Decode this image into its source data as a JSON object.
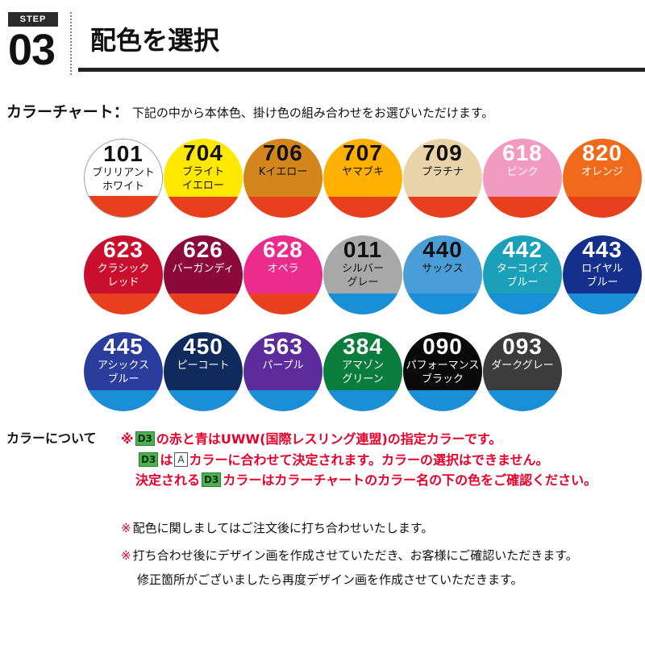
{
  "header": {
    "step_label": "STEP",
    "step_number": "03",
    "title": "配色を選択"
  },
  "chart_intro": {
    "label": "カラーチャート：",
    "description": "下記の中から本体色、掛け色の組み合わせをお選びいただけます。"
  },
  "swatches": [
    {
      "code": "101",
      "name": "ブリリアント\nホワイト",
      "top_color": "#ffffff",
      "bottom_color": "#e8401c",
      "text_color": "#111111"
    },
    {
      "code": "704",
      "name": "ブライト\nイエロー",
      "top_color": "#ffe800",
      "bottom_color": "#e8401c",
      "text_color": "#111111"
    },
    {
      "code": "706",
      "name": "Kイエロー",
      "top_color": "#d4861c",
      "bottom_color": "#e8401c",
      "text_color": "#111111"
    },
    {
      "code": "707",
      "name": "ヤマブキ",
      "top_color": "#ffb000",
      "bottom_color": "#e8401c",
      "text_color": "#111111"
    },
    {
      "code": "709",
      "name": "プラチナ",
      "top_color": "#e8d4a8",
      "bottom_color": "#e8401c",
      "text_color": "#111111"
    },
    {
      "code": "618",
      "name": "ピンク",
      "top_color": "#f29ac0",
      "bottom_color": "#e8401c",
      "text_color": "#ffffff"
    },
    {
      "code": "820",
      "name": "オレンジ",
      "top_color": "#ef6a1a",
      "bottom_color": "#e8401c",
      "text_color": "#ffffff"
    },
    {
      "code": "623",
      "name": "クラシック\nレッド",
      "top_color": "#c8102e",
      "bottom_color": "#e8401c",
      "text_color": "#ffffff"
    },
    {
      "code": "626",
      "name": "バーガンディ",
      "top_color": "#8c0a3a",
      "bottom_color": "#e8401c",
      "text_color": "#ffffff"
    },
    {
      "code": "628",
      "name": "オペラ",
      "top_color": "#ec2c8c",
      "bottom_color": "#e8401c",
      "text_color": "#ffffff"
    },
    {
      "code": "011",
      "name": "シルバー\nグレー",
      "top_color": "#a8a8a8",
      "bottom_color": "#1a8fd8",
      "text_color": "#111111"
    },
    {
      "code": "440",
      "name": "サックス",
      "top_color": "#4a9ed8",
      "bottom_color": "#1a8fd8",
      "text_color": "#111111"
    },
    {
      "code": "442",
      "name": "ターコイズ\nブルー",
      "top_color": "#1aa0b8",
      "bottom_color": "#1a8fd8",
      "text_color": "#ffffff"
    },
    {
      "code": "443",
      "name": "ロイヤル\nブルー",
      "top_color": "#14308c",
      "bottom_color": "#1a8fd8",
      "text_color": "#ffffff"
    },
    {
      "code": "445",
      "name": "アシックス\nブルー",
      "top_color": "#2a3c9c",
      "bottom_color": "#1a8fd8",
      "text_color": "#ffffff"
    },
    {
      "code": "450",
      "name": "ピーコート",
      "top_color": "#0f2a5c",
      "bottom_color": "#1a8fd8",
      "text_color": "#ffffff"
    },
    {
      "code": "563",
      "name": "パープル",
      "top_color": "#5c2c9c",
      "bottom_color": "#1a8fd8",
      "text_color": "#ffffff"
    },
    {
      "code": "384",
      "name": "アマゾン\nグリーン",
      "top_color": "#0a7c3c",
      "bottom_color": "#1a8fd8",
      "text_color": "#ffffff"
    },
    {
      "code": "090",
      "name": "パフォーマンス\nブラック",
      "top_color": "#0a0a0a",
      "bottom_color": "#1a8fd8",
      "text_color": "#ffffff"
    },
    {
      "code": "093",
      "name": "ダークグレー",
      "top_color": "#3c3c3c",
      "bottom_color": "#1a8fd8",
      "text_color": "#ffffff"
    }
  ],
  "color_notes": {
    "heading": "カラーについて",
    "asterisk": "※",
    "tag_d3": "D3",
    "tag_a": "A",
    "line1_text": "の赤と青はUWW(国際レスリング連盟)の指定カラーです。",
    "line2_part1": "は",
    "line2_part2": "カラーに合わせて決定されます。カラーの選択はできません。",
    "line3_part1": "決定される",
    "line3_part2": "カラーはカラーチャートのカラー名の下の色をご確認ください。"
  },
  "info_notes": {
    "asterisk": "※",
    "line1": "配色に関しましてはご注文後に打ち合わせいたします。",
    "line2": "打ち合わせ後にデザイン画を作成させていただき、お客様にご確認いただきます。",
    "line3": "修正箇所がございましたら再度デザイン画を作成させていただきます。"
  }
}
